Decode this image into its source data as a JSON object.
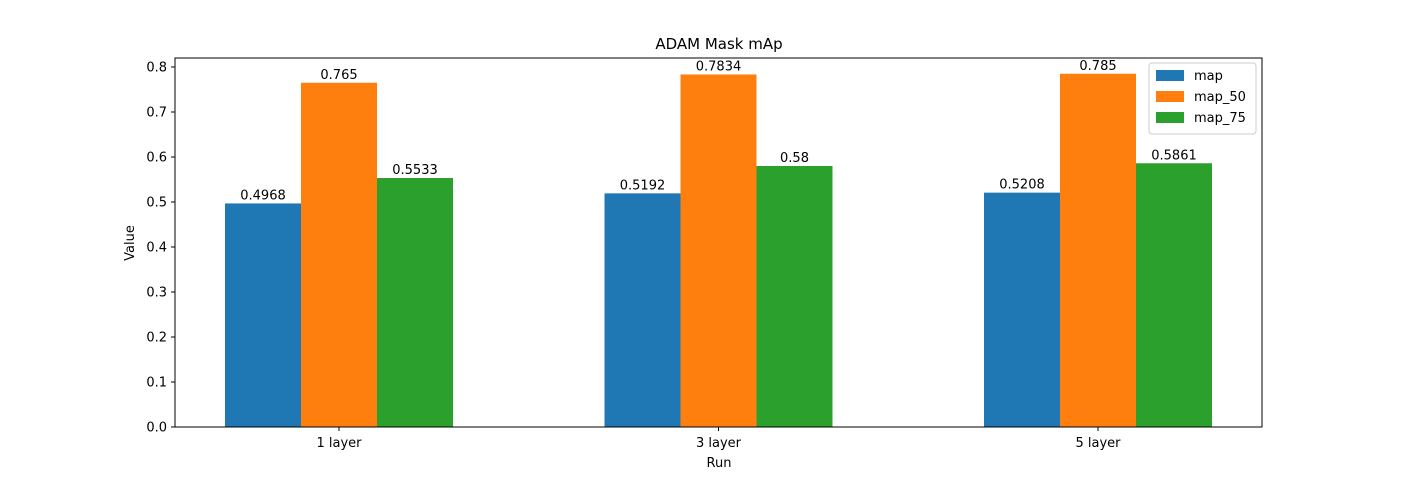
{
  "chart_data": {
    "type": "bar",
    "title": "ADAM Mask mAp",
    "xlabel": "Run",
    "ylabel": "Value",
    "categories": [
      "1 layer",
      "3 layer",
      "5 layer"
    ],
    "series": [
      {
        "name": "map",
        "values": [
          0.4968,
          0.5192,
          0.5208
        ],
        "labels": [
          "0.4968",
          "0.5192",
          "0.5208"
        ],
        "color": "#1f77b4"
      },
      {
        "name": "map_50",
        "values": [
          0.765,
          0.7834,
          0.785
        ],
        "labels": [
          "0.765",
          "0.7834",
          "0.785"
        ],
        "color": "#ff7f0e"
      },
      {
        "name": "map_75",
        "values": [
          0.5533,
          0.58,
          0.5861
        ],
        "labels": [
          "0.5533",
          "0.58",
          "0.5861"
        ],
        "color": "#2ca02c"
      }
    ],
    "ylim": [
      0,
      0.82
    ],
    "yticks": [
      0.0,
      0.1,
      0.2,
      0.3,
      0.4,
      0.5,
      0.6,
      0.7,
      0.8
    ],
    "ytick_labels": [
      "0.0",
      "0.1",
      "0.2",
      "0.3",
      "0.4",
      "0.5",
      "0.6",
      "0.7",
      "0.8"
    ],
    "grid": false,
    "legend_position": "top-right"
  }
}
